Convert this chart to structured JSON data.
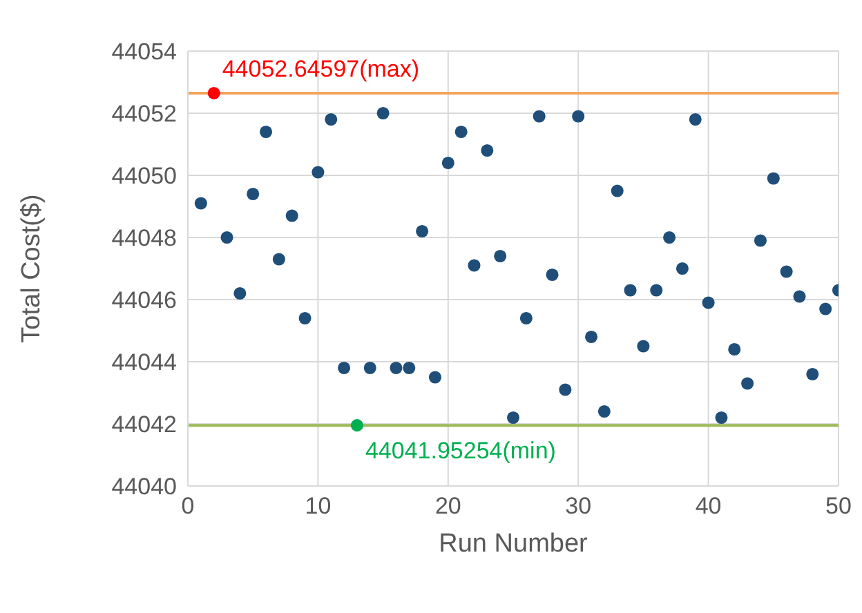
{
  "chart_data": {
    "type": "scatter",
    "xlabel": "Run Number",
    "ylabel": "Total Cost($)",
    "xlim": [
      0,
      50
    ],
    "xticks": [
      0,
      10,
      20,
      30,
      40,
      50
    ],
    "ylim": [
      44040,
      44054
    ],
    "yticks": [
      44040,
      44042,
      44044,
      44046,
      44048,
      44050,
      44052,
      44054
    ],
    "grid": true,
    "marker": "circle",
    "series": [
      {
        "color": "#1f4e79",
        "x": [
          1,
          3,
          4,
          5,
          6,
          7,
          8,
          9,
          10,
          11,
          12,
          14,
          15,
          16,
          17,
          18,
          19,
          20,
          21,
          22,
          23,
          24,
          25,
          26,
          27,
          28,
          29,
          30,
          31,
          32,
          33,
          34,
          35,
          36,
          37,
          38,
          39,
          40,
          41,
          42,
          43,
          44,
          45,
          46,
          47,
          48,
          49,
          50
        ],
        "values": [
          44049.1,
          44048.0,
          44046.2,
          44049.4,
          44051.4,
          44047.3,
          44048.7,
          44045.4,
          44050.1,
          44051.8,
          44043.8,
          44043.8,
          44052.0,
          44043.8,
          44043.8,
          44048.2,
          44043.5,
          44050.4,
          44051.4,
          44047.1,
          44050.8,
          44047.4,
          44042.2,
          44045.4,
          44051.9,
          44046.8,
          44043.1,
          44051.9,
          44044.8,
          44042.4,
          44049.5,
          44046.3,
          44044.5,
          44046.3,
          44048.0,
          44047.0,
          44051.8,
          44045.9,
          44042.2,
          44044.4,
          44043.3,
          44047.9,
          44049.9,
          44046.9,
          44046.1,
          44043.6,
          44045.7,
          44046.3
        ]
      },
      {
        "color": "#ff0000",
        "x": [
          2
        ],
        "values": [
          44052.64597
        ]
      },
      {
        "color": "#00b050",
        "x": [
          13
        ],
        "values": [
          44041.95254
        ]
      }
    ],
    "ref_lines": [
      {
        "axis": "y",
        "value": 44052.64597,
        "color": "#f4a460"
      },
      {
        "axis": "y",
        "value": 44041.95254,
        "color": "#9bbb59"
      }
    ],
    "annotations": [
      {
        "text": "44052.64597(max)",
        "x": 2,
        "y": 44052.64597
      },
      {
        "text": "44041.95254(min)",
        "x": 13,
        "y": 44041.95254
      }
    ]
  }
}
